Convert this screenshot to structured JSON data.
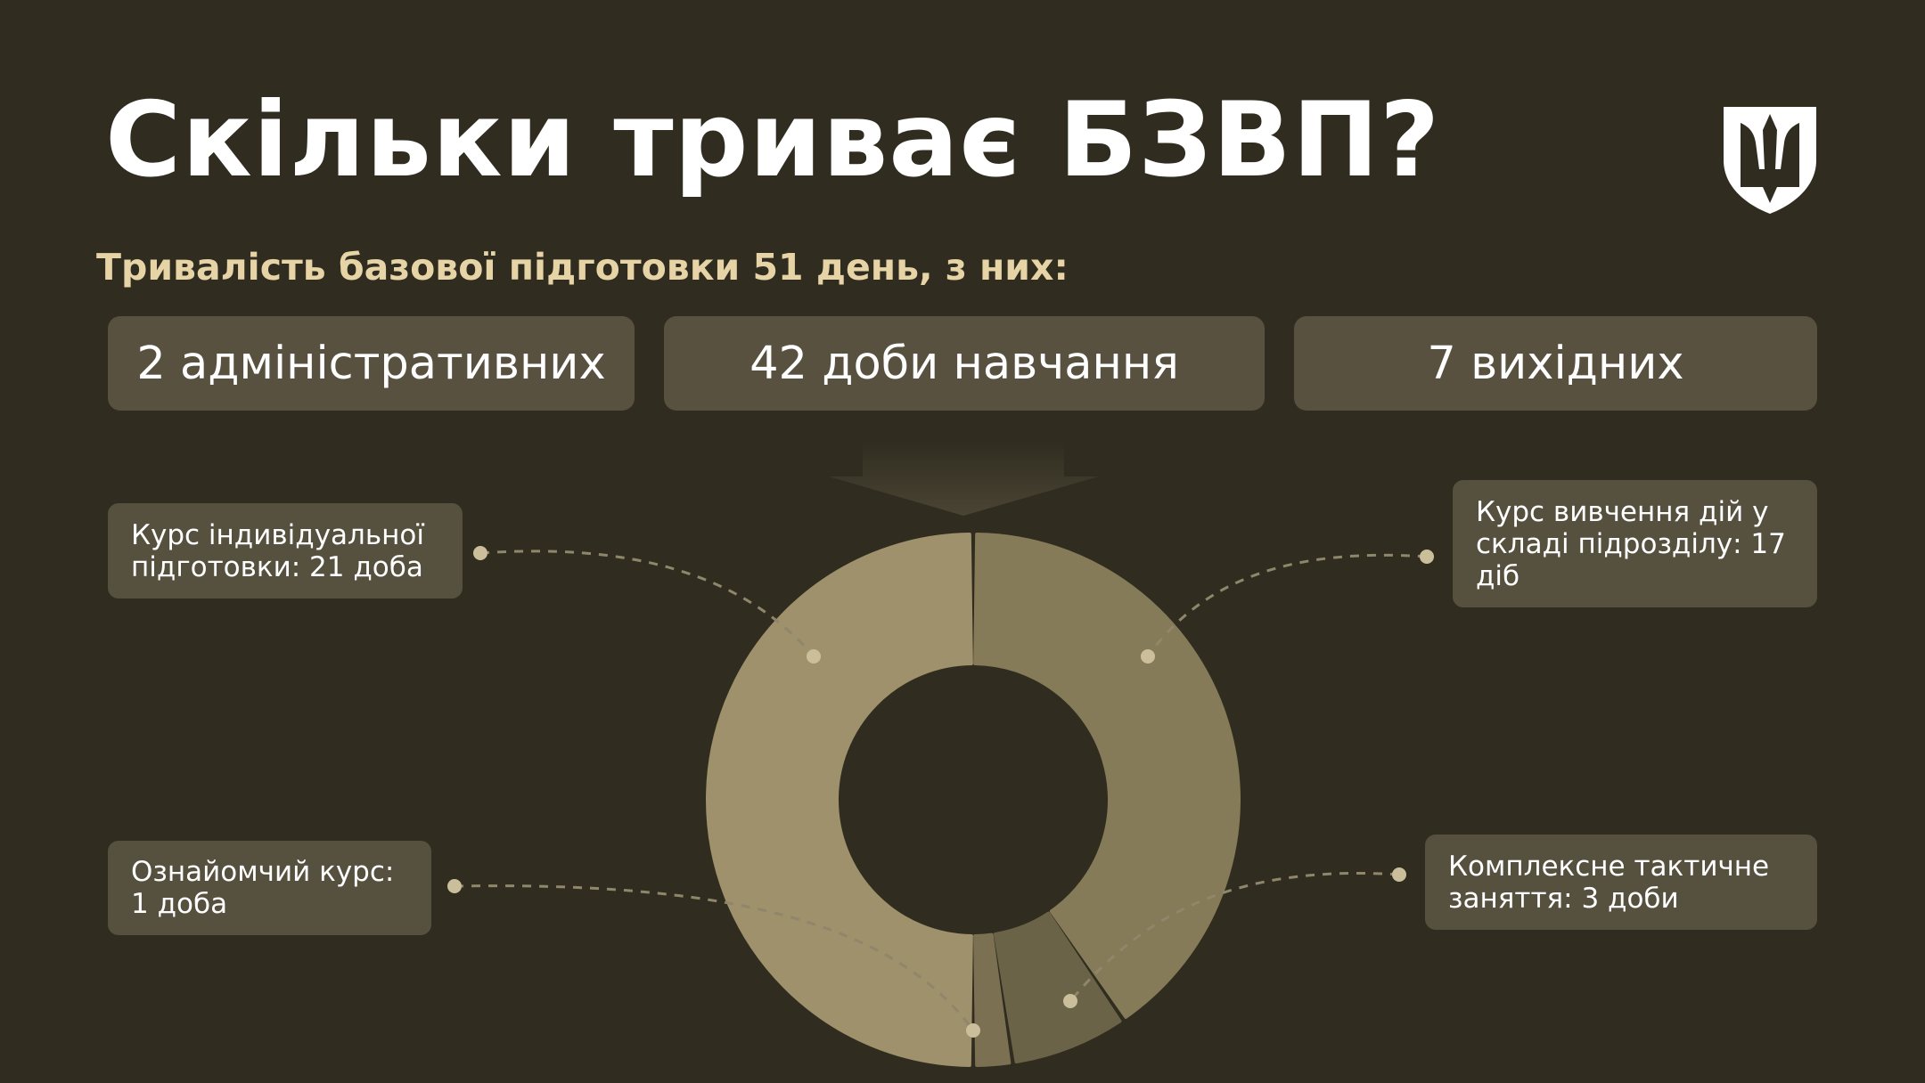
{
  "header": {
    "title": "Скільки триває БЗВП?",
    "subtitle": "Тривалість базової підготовки 51 день, з них:",
    "logo": "trident-shield-icon"
  },
  "breakdown": [
    {
      "label": "2 адміністративних"
    },
    {
      "label": "42 доби навчання"
    },
    {
      "label": "7 вихідних"
    }
  ],
  "callouts": {
    "individual": "Курс індивідуальної підготовки: 21 доба",
    "intro": "Ознайомчий курс: 1 доба",
    "unit": "Курс вивчення дій у складі підрозділу: 17 діб",
    "tactical": "Комплексне тактичне заняття: 3 доби"
  },
  "colors": {
    "background": "#302d20",
    "accent": "#e6d3a6",
    "box": "#58513f"
  },
  "chart_data": {
    "type": "pie",
    "variant": "donut",
    "total": 42,
    "slices": [
      {
        "name": "Курс вивчення дій у складі підрозділу",
        "value": 17,
        "color": "#867b58"
      },
      {
        "name": "Комплексне тактичне заняття",
        "value": 3,
        "color": "#6b6347"
      },
      {
        "name": "Ознайомчий курс",
        "value": 1,
        "color": "#7b7052"
      },
      {
        "name": "Курс індивідуальної підготовки",
        "value": 21,
        "color": "#9e916b"
      }
    ]
  }
}
